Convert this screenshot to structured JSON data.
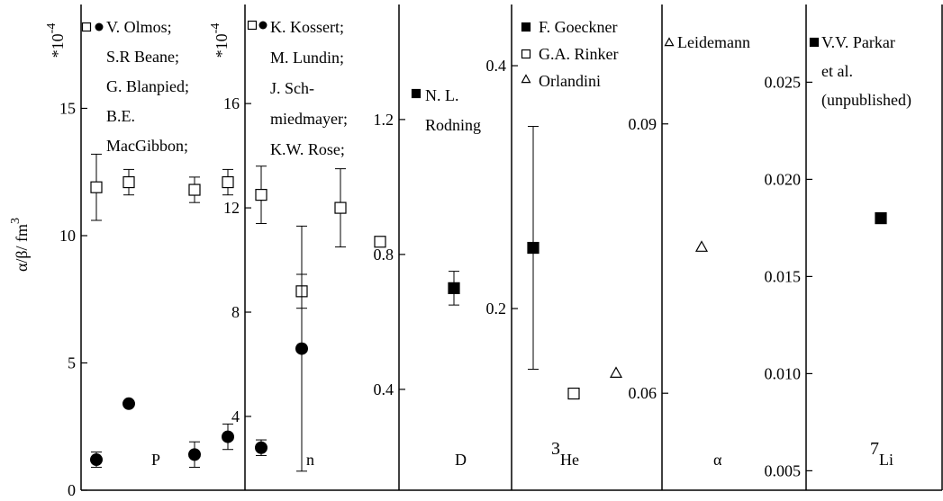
{
  "chart_data": [
    {
      "type": "scatter",
      "ylabel": {
        "text": "α/β/ fm",
        "superscript": "3"
      },
      "multiplier": {
        "text": "*10",
        "superscript": "-4"
      },
      "ylim": [
        0,
        19.08
      ],
      "yticks": [
        0,
        5,
        10,
        15
      ],
      "legend": [
        "V. Olmos;",
        "S.R Beane;",
        "G. Blanpied;",
        "B.E.",
        "MacGibbon;"
      ],
      "panel_label": "P",
      "series": [
        {
          "marker": "open-square",
          "color": "#000000",
          "values": [
            11.9,
            12.1,
            11.8,
            12.1
          ],
          "errors": [
            1.3,
            0.5,
            0.5,
            0.5
          ]
        },
        {
          "marker": "filled-circle",
          "color": "#000000",
          "values": [
            1.2,
            3.4,
            1.4,
            2.1
          ],
          "errors": [
            0.3,
            null,
            0.5,
            0.5
          ]
        }
      ]
    },
    {
      "type": "scatter",
      "multiplier": {
        "text": "*10",
        "superscript": "-4"
      },
      "ylim": [
        1.17,
        19.8
      ],
      "yticks": [
        4,
        8,
        12,
        16
      ],
      "legend": [
        "K. Kossert;",
        "M. Lundin;",
        "J. Sch-",
        "miedmayer;",
        "K.W. Rose;"
      ],
      "panel_label": "n",
      "series": [
        {
          "marker": "open-square",
          "color": "#000000",
          "values": [
            12.5,
            8.8,
            12.0,
            10.7
          ],
          "errors": [
            1.1,
            0.65,
            1.5,
            null
          ]
        },
        {
          "marker": "filled-circle",
          "color": "#000000",
          "values": [
            2.8,
            6.6
          ],
          "errors": [
            0.3,
            4.7
          ]
        }
      ]
    },
    {
      "type": "scatter",
      "ylim": [
        0.101,
        1.541
      ],
      "yticks": [
        0.4,
        0.8,
        1.2
      ],
      "legend": [
        "N. L.",
        "Rodning"
      ],
      "panel_label": "D",
      "series": [
        {
          "marker": "filled-square",
          "color": "#000000",
          "values": [
            0.7
          ],
          "errors": [
            0.05
          ]
        }
      ]
    },
    {
      "type": "scatter",
      "ylim": [
        0.0504,
        0.4504
      ],
      "yticks": [
        0.2,
        0.4
      ],
      "panel_label": {
        "superscript": "3",
        "text": "He"
      },
      "series": [
        {
          "name": "F. Goeckner",
          "marker": "filled-square",
          "color": "#000000",
          "values": [
            0.25
          ],
          "errors": [
            0.1
          ]
        },
        {
          "name": "G.A. Rinker",
          "marker": "open-square",
          "color": "#000000",
          "values": [
            0.13
          ]
        },
        {
          "name": "Orlandini",
          "marker": "open-triangle",
          "color": "#000000",
          "values": [
            0.147
          ]
        }
      ]
    },
    {
      "type": "scatter",
      "ylim": [
        0.0492,
        0.1033
      ],
      "yticks": [
        0.06,
        0.09
      ],
      "panel_label": "α",
      "series": [
        {
          "name": "Leidemann",
          "marker": "open-triangle",
          "color": "#000000",
          "values": [
            0.0763
          ]
        }
      ]
    },
    {
      "type": "scatter",
      "ylim": [
        0.004,
        0.029
      ],
      "yticks": [
        0.005,
        {
          "value": 0.01,
          "label": "0.010"
        },
        0.015,
        {
          "value": 0.02,
          "label": "0.020"
        },
        0.025
      ],
      "legend": [
        "V.V. Parkar",
        "et  al.",
        "(unpublished)"
      ],
      "panel_label": {
        "superscript": "7",
        "text": "Li"
      },
      "series": [
        {
          "marker": "filled-square",
          "color": "#000000",
          "values": [
            0.018
          ]
        }
      ]
    }
  ]
}
